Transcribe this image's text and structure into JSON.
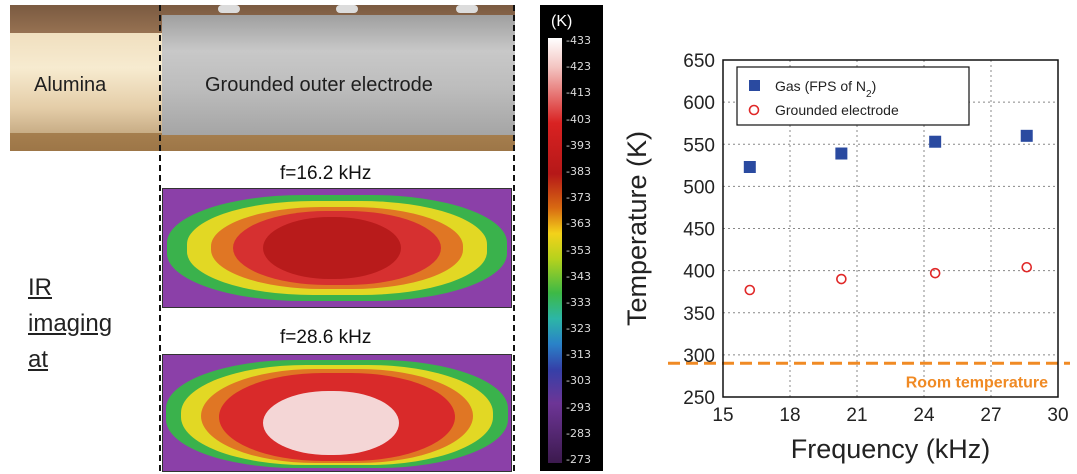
{
  "photo": {
    "alumina_label": "Alumina",
    "electrode_label": "Grounded outer electrode"
  },
  "ir": {
    "label_lines": [
      "IR",
      "imaging",
      "at"
    ],
    "panels": [
      {
        "freq_label": "f=16.2 kHz"
      },
      {
        "freq_label": "f=28.6 kHz"
      }
    ],
    "colorbar": {
      "unit": "(K)",
      "ticks": [
        "433",
        "423",
        "413",
        "403",
        "393",
        "383",
        "373",
        "363",
        "353",
        "343",
        "333",
        "323",
        "313",
        "303",
        "293",
        "283",
        "273"
      ]
    }
  },
  "chart_data": {
    "type": "scatter",
    "xlabel": "Frequency (kHz)",
    "ylabel": "Temperature (K)",
    "xlim": [
      15,
      30
    ],
    "ylim": [
      250,
      650
    ],
    "xticks": [
      "15",
      "18",
      "21",
      "24",
      "27",
      "30"
    ],
    "yticks": [
      "250",
      "300",
      "350",
      "400",
      "450",
      "500",
      "550",
      "600",
      "650"
    ],
    "grid": true,
    "legend_position": "top-left",
    "series": [
      {
        "name": "Gas (FPS of N",
        "name_sub": "2",
        "name_tail": ")",
        "marker": "filled-square",
        "color": "#2a4aa0",
        "x": [
          16.2,
          20.3,
          24.5,
          28.6
        ],
        "y": [
          523,
          539,
          553,
          560
        ]
      },
      {
        "name": "Grounded electrode",
        "marker": "open-circle",
        "color": "#e02828",
        "x": [
          16.2,
          20.3,
          24.5,
          28.6
        ],
        "y": [
          377,
          390,
          397,
          404
        ]
      }
    ],
    "reference_line": {
      "y": 290,
      "label": "Room temperature",
      "color": "#f08a24"
    }
  }
}
